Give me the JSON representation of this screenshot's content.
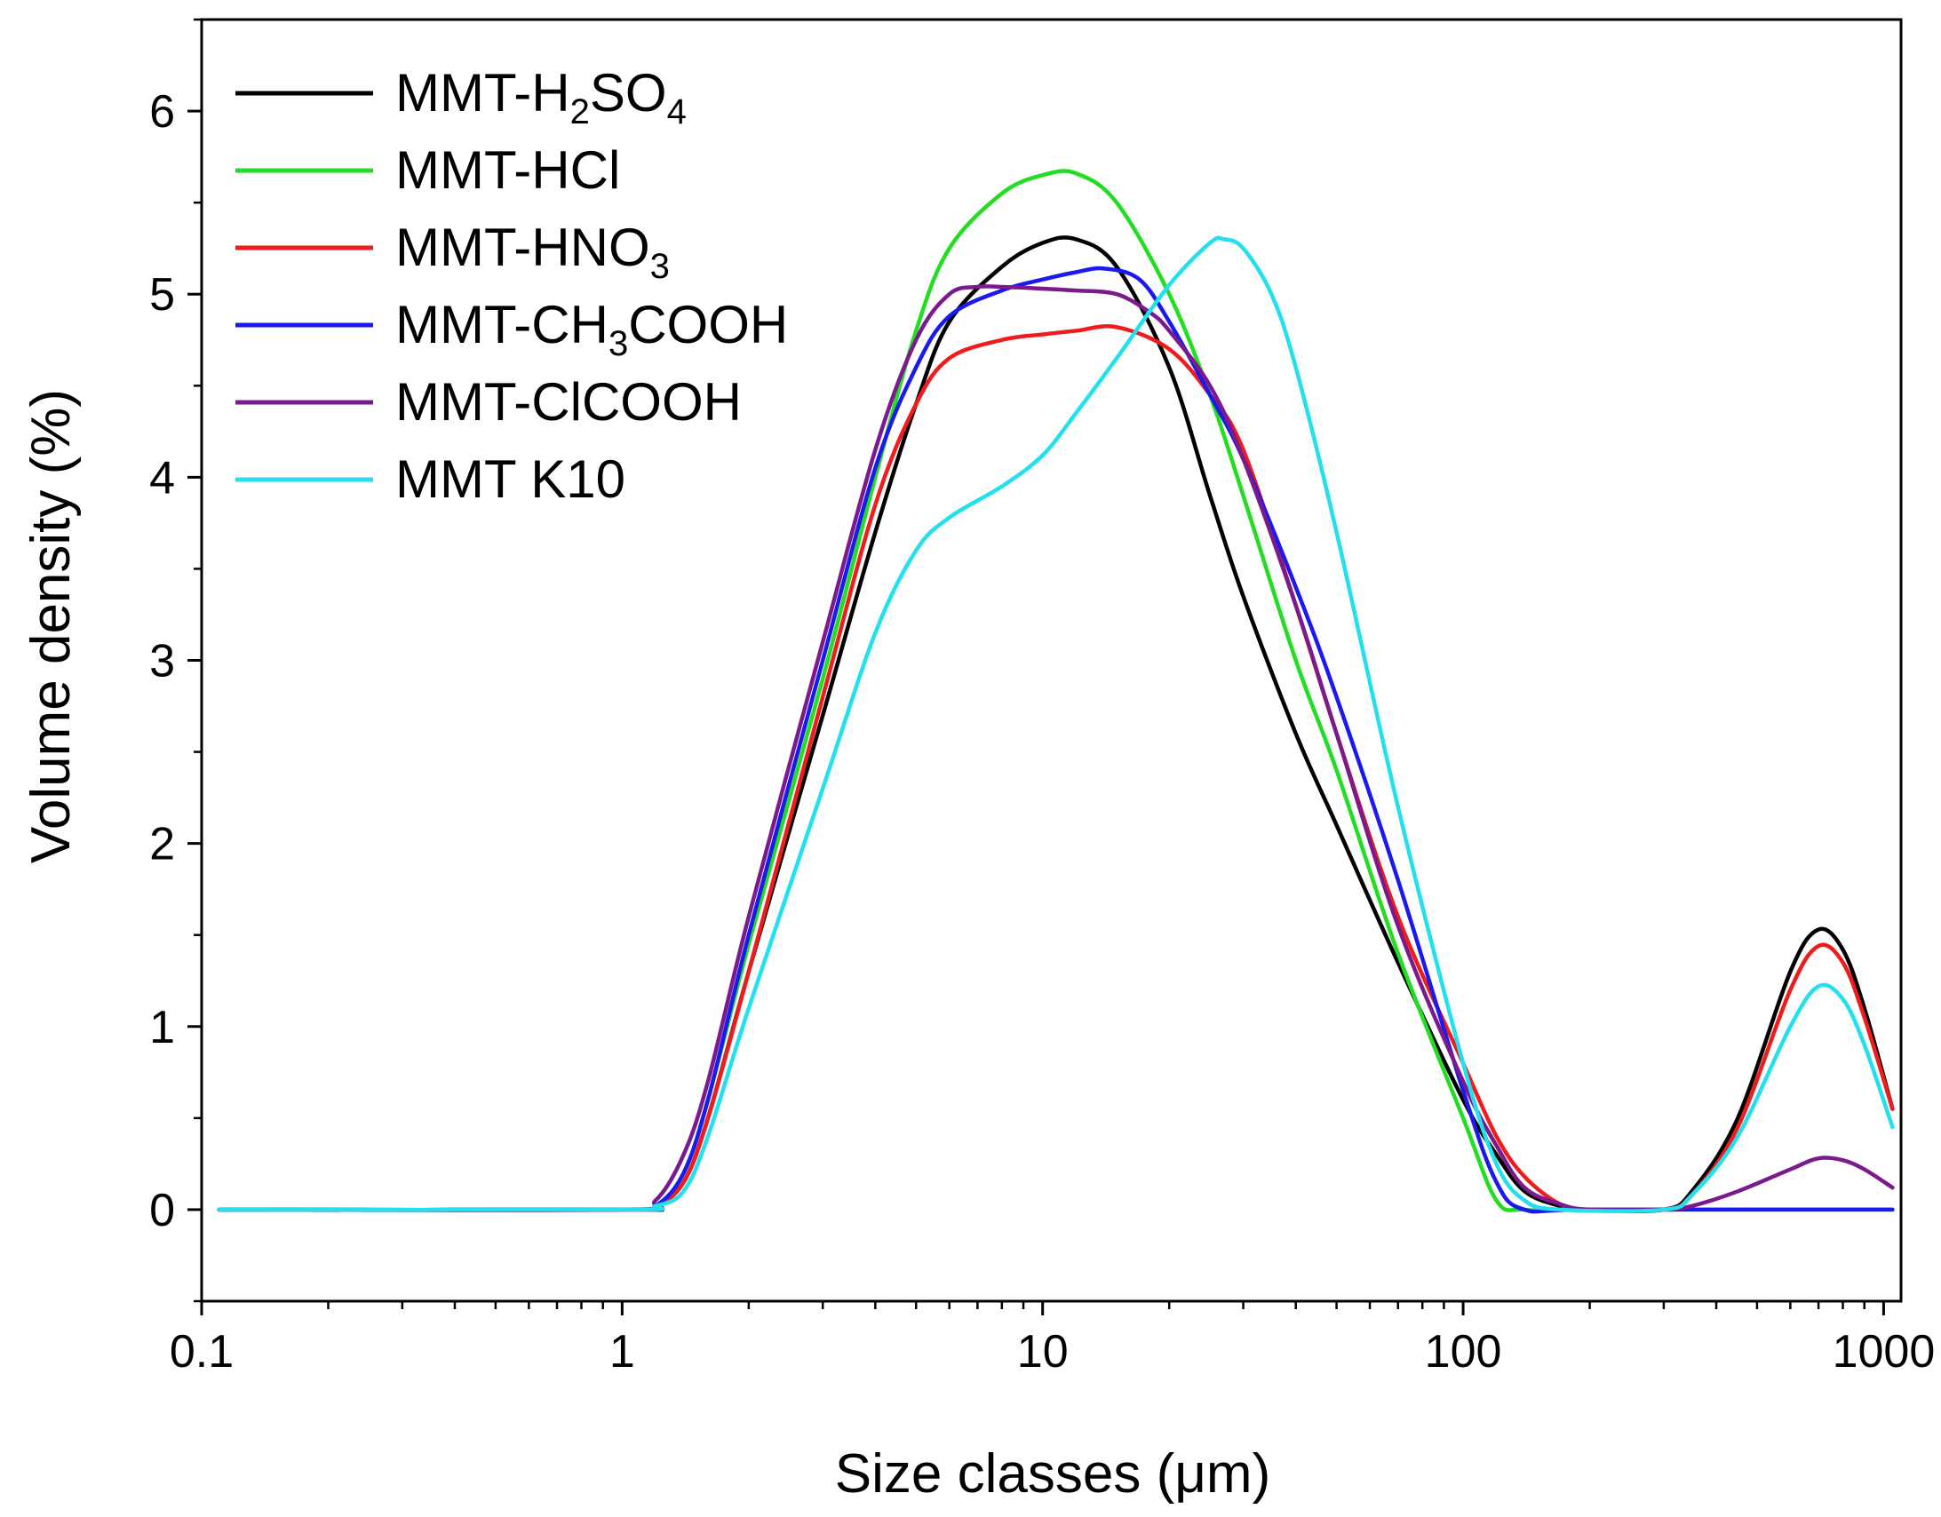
{
  "chart_data": {
    "type": "line",
    "title": "",
    "xlabel": "Size classes (μm)",
    "ylabel": "Volume density (%)",
    "xscale": "log",
    "xlim": [
      0.1,
      1100
    ],
    "ylim": [
      -0.5,
      6.5
    ],
    "x_ticks": [
      0.1,
      1,
      10,
      100,
      1000
    ],
    "x_tick_labels": [
      "0.1",
      "1",
      "10",
      "100",
      "1000"
    ],
    "y_ticks": [
      0,
      1,
      2,
      3,
      4,
      5,
      6
    ],
    "y_tick_labels": [
      "0",
      "1",
      "2",
      "3",
      "4",
      "5",
      "6"
    ],
    "grid": false,
    "legend_position": "top-left",
    "series": [
      {
        "name": "MMT-H2SO4",
        "label_parts": [
          [
            "MMT-H",
            ""
          ],
          [
            "2",
            "sub"
          ],
          [
            "SO",
            ""
          ],
          [
            "4",
            "sub"
          ]
        ],
        "color": "#000000",
        "points": [
          [
            0.11,
            0
          ],
          [
            1.0,
            0
          ],
          [
            1.2,
            0.02
          ],
          [
            1.4,
            0.15
          ],
          [
            1.6,
            0.5
          ],
          [
            2,
            1.3
          ],
          [
            3,
            2.7
          ],
          [
            4,
            3.7
          ],
          [
            5,
            4.4
          ],
          [
            6,
            4.85
          ],
          [
            8,
            5.15
          ],
          [
            10,
            5.28
          ],
          [
            12,
            5.3
          ],
          [
            15,
            5.15
          ],
          [
            20,
            4.6
          ],
          [
            25,
            3.9
          ],
          [
            30,
            3.35
          ],
          [
            40,
            2.6
          ],
          [
            50,
            2.1
          ],
          [
            70,
            1.35
          ],
          [
            100,
            0.6
          ],
          [
            120,
            0.3
          ],
          [
            140,
            0.1
          ],
          [
            170,
            0.02
          ],
          [
            200,
            0
          ],
          [
            300,
            0
          ],
          [
            350,
            0.1
          ],
          [
            450,
            0.5
          ],
          [
            600,
            1.3
          ],
          [
            700,
            1.53
          ],
          [
            800,
            1.42
          ],
          [
            900,
            1.1
          ],
          [
            1050,
            0.55
          ]
        ]
      },
      {
        "name": "MMT-HCl",
        "label_parts": [
          [
            "MMT-HCl",
            ""
          ]
        ],
        "color": "#22dd22",
        "points": [
          [
            0.11,
            0
          ],
          [
            1.0,
            0
          ],
          [
            1.2,
            0.02
          ],
          [
            1.4,
            0.2
          ],
          [
            1.6,
            0.6
          ],
          [
            2,
            1.45
          ],
          [
            3,
            2.9
          ],
          [
            4,
            4.0
          ],
          [
            5,
            4.8
          ],
          [
            6,
            5.25
          ],
          [
            8,
            5.55
          ],
          [
            10,
            5.65
          ],
          [
            12,
            5.66
          ],
          [
            15,
            5.5
          ],
          [
            20,
            5.0
          ],
          [
            25,
            4.45
          ],
          [
            30,
            3.9
          ],
          [
            40,
            3.0
          ],
          [
            50,
            2.4
          ],
          [
            70,
            1.4
          ],
          [
            100,
            0.5
          ],
          [
            120,
            0.05
          ],
          [
            140,
            0
          ],
          [
            200,
            0
          ],
          [
            1050,
            0
          ]
        ]
      },
      {
        "name": "MMT-HNO3",
        "label_parts": [
          [
            "MMT-HNO",
            ""
          ],
          [
            "3",
            "sub"
          ]
        ],
        "color": "#ee1c1c",
        "points": [
          [
            0.11,
            0
          ],
          [
            1.0,
            0
          ],
          [
            1.2,
            0.02
          ],
          [
            1.4,
            0.15
          ],
          [
            1.6,
            0.5
          ],
          [
            2,
            1.3
          ],
          [
            3,
            2.8
          ],
          [
            4,
            3.85
          ],
          [
            5,
            4.4
          ],
          [
            6,
            4.65
          ],
          [
            8,
            4.75
          ],
          [
            10,
            4.78
          ],
          [
            12,
            4.8
          ],
          [
            15,
            4.82
          ],
          [
            20,
            4.7
          ],
          [
            25,
            4.45
          ],
          [
            30,
            4.15
          ],
          [
            40,
            3.3
          ],
          [
            50,
            2.6
          ],
          [
            70,
            1.6
          ],
          [
            100,
            0.8
          ],
          [
            120,
            0.4
          ],
          [
            140,
            0.18
          ],
          [
            170,
            0.03
          ],
          [
            200,
            0
          ],
          [
            300,
            0
          ],
          [
            350,
            0.08
          ],
          [
            450,
            0.45
          ],
          [
            600,
            1.2
          ],
          [
            700,
            1.44
          ],
          [
            800,
            1.35
          ],
          [
            900,
            1.05
          ],
          [
            1050,
            0.55
          ]
        ]
      },
      {
        "name": "MMT-CH3COOH",
        "label_parts": [
          [
            "MMT-CH",
            ""
          ],
          [
            "3",
            "sub"
          ],
          [
            "COOH",
            ""
          ]
        ],
        "color": "#1a1aee",
        "points": [
          [
            0.11,
            0
          ],
          [
            1.0,
            0
          ],
          [
            1.2,
            0.02
          ],
          [
            1.4,
            0.2
          ],
          [
            1.6,
            0.6
          ],
          [
            2,
            1.5
          ],
          [
            3,
            3.0
          ],
          [
            4,
            4.05
          ],
          [
            5,
            4.6
          ],
          [
            6,
            4.88
          ],
          [
            8,
            5.02
          ],
          [
            10,
            5.08
          ],
          [
            12,
            5.12
          ],
          [
            14,
            5.14
          ],
          [
            17,
            5.08
          ],
          [
            20,
            4.85
          ],
          [
            25,
            4.45
          ],
          [
            30,
            4.1
          ],
          [
            40,
            3.4
          ],
          [
            50,
            2.8
          ],
          [
            70,
            1.8
          ],
          [
            100,
            0.65
          ],
          [
            120,
            0.15
          ],
          [
            140,
            0
          ],
          [
            200,
            0
          ],
          [
            1050,
            0
          ]
        ]
      },
      {
        "name": "MMT-ClCOOH",
        "label_parts": [
          [
            "MMT-ClCOOH",
            ""
          ]
        ],
        "color": "#7a1a8c",
        "points": [
          [
            0.11,
            0
          ],
          [
            1.0,
            0
          ],
          [
            1.2,
            0.05
          ],
          [
            1.4,
            0.3
          ],
          [
            1.6,
            0.7
          ],
          [
            2,
            1.6
          ],
          [
            3,
            3.1
          ],
          [
            4,
            4.15
          ],
          [
            5,
            4.75
          ],
          [
            6,
            5.0
          ],
          [
            7,
            5.04
          ],
          [
            8,
            5.04
          ],
          [
            10,
            5.03
          ],
          [
            12,
            5.02
          ],
          [
            15,
            5.0
          ],
          [
            18,
            4.9
          ],
          [
            20,
            4.8
          ],
          [
            25,
            4.5
          ],
          [
            30,
            4.1
          ],
          [
            40,
            3.3
          ],
          [
            50,
            2.6
          ],
          [
            70,
            1.55
          ],
          [
            100,
            0.7
          ],
          [
            120,
            0.35
          ],
          [
            140,
            0.12
          ],
          [
            170,
            0.03
          ],
          [
            200,
            0
          ],
          [
            300,
            0
          ],
          [
            350,
            0.02
          ],
          [
            450,
            0.1
          ],
          [
            600,
            0.22
          ],
          [
            700,
            0.28
          ],
          [
            800,
            0.27
          ],
          [
            900,
            0.22
          ],
          [
            1050,
            0.12
          ]
        ]
      },
      {
        "name": "MMT K10",
        "label_parts": [
          [
            "MMT K10",
            ""
          ]
        ],
        "color": "#22e0ee",
        "points": [
          [
            0.11,
            0
          ],
          [
            1.0,
            0
          ],
          [
            1.2,
            0.02
          ],
          [
            1.4,
            0.1
          ],
          [
            1.6,
            0.4
          ],
          [
            2,
            1.1
          ],
          [
            3,
            2.3
          ],
          [
            4,
            3.15
          ],
          [
            5,
            3.6
          ],
          [
            6,
            3.78
          ],
          [
            8,
            3.95
          ],
          [
            10,
            4.12
          ],
          [
            12,
            4.35
          ],
          [
            15,
            4.65
          ],
          [
            20,
            5.05
          ],
          [
            25,
            5.28
          ],
          [
            27,
            5.3
          ],
          [
            30,
            5.25
          ],
          [
            35,
            5.0
          ],
          [
            40,
            4.6
          ],
          [
            50,
            3.7
          ],
          [
            70,
            2.2
          ],
          [
            100,
            0.8
          ],
          [
            120,
            0.25
          ],
          [
            140,
            0.05
          ],
          [
            170,
            0
          ],
          [
            300,
            0
          ],
          [
            350,
            0.08
          ],
          [
            450,
            0.4
          ],
          [
            600,
            1.0
          ],
          [
            700,
            1.22
          ],
          [
            800,
            1.15
          ],
          [
            900,
            0.9
          ],
          [
            1050,
            0.45
          ]
        ]
      }
    ]
  }
}
